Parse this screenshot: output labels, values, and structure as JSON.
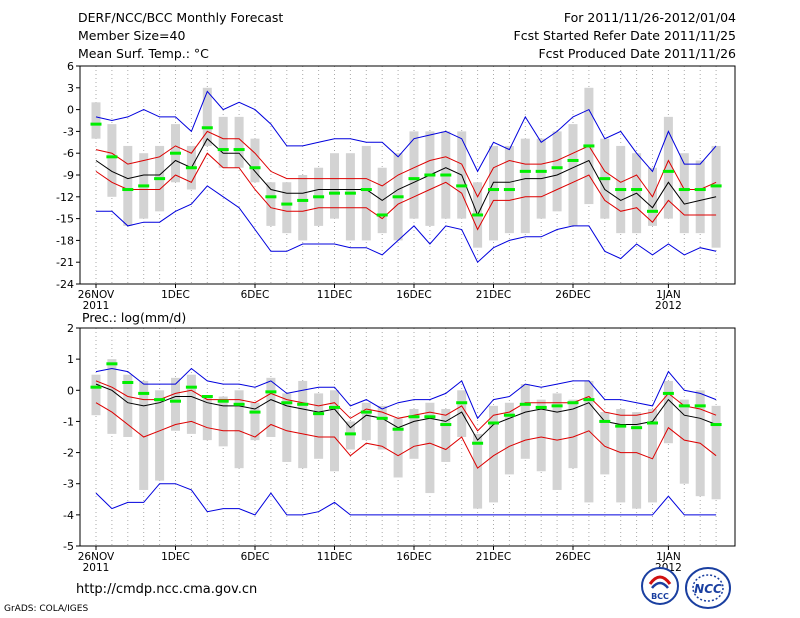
{
  "header": {
    "title": "DERF/NCC/BCC Monthly Forecast",
    "member_size": "Member Size=40",
    "variable": "Mean Surf. Temp.: °C",
    "period": "For 2011/11/26-2012/01/04",
    "started": "Fcst Started Refer Date 2011/11/25",
    "produced": "Fcst Produced Date 2011/11/26"
  },
  "footer": {
    "url": "http://cmdp.ncc.cma.gov.cn",
    "credit": "GrADS: COLA/IGES",
    "logo_bcc": "BCC",
    "logo_ncc": "NCC"
  },
  "colors": {
    "box": "#d3d3d3",
    "median": "#00ee00",
    "mean": "#000000",
    "band": "#dd0000",
    "envelope": "#0000dd",
    "grid": "#aaaaaa"
  },
  "chart_data": [
    {
      "type": "line",
      "title": "Mean Surf. Temp.: °C",
      "ylabel": "°C",
      "ylim": [
        -24,
        6
      ],
      "yticks": [
        -24,
        -21,
        -18,
        -15,
        -12,
        -9,
        -6,
        -3,
        0,
        3,
        6
      ],
      "ytick_labels": [
        "-24",
        "-21",
        "-18",
        "-15",
        "-12",
        "-9",
        "-6",
        "-3",
        "0",
        "3",
        "6"
      ],
      "x_dates": [
        "26NOV",
        "27NOV",
        "28NOV",
        "29NOV",
        "30NOV",
        "1DEC",
        "2DEC",
        "3DEC",
        "4DEC",
        "5DEC",
        "6DEC",
        "7DEC",
        "8DEC",
        "9DEC",
        "10DEC",
        "11DEC",
        "12DEC",
        "13DEC",
        "14DEC",
        "15DEC",
        "16DEC",
        "17DEC",
        "18DEC",
        "19DEC",
        "20DEC",
        "21DEC",
        "22DEC",
        "23DEC",
        "24DEC",
        "25DEC",
        "26DEC",
        "27DEC",
        "28DEC",
        "29DEC",
        "30DEC",
        "31DEC",
        "1JAN",
        "2JAN",
        "3JAN",
        "4JAN"
      ],
      "xticks": [
        {
          "index": 0,
          "label": "26NOV",
          "sub": "2011"
        },
        {
          "index": 5,
          "label": "1DEC",
          "sub": ""
        },
        {
          "index": 10,
          "label": "6DEC",
          "sub": ""
        },
        {
          "index": 15,
          "label": "11DEC",
          "sub": ""
        },
        {
          "index": 20,
          "label": "16DEC",
          "sub": ""
        },
        {
          "index": 25,
          "label": "21DEC",
          "sub": ""
        },
        {
          "index": 30,
          "label": "26DEC",
          "sub": ""
        },
        {
          "index": 36,
          "label": "1JAN",
          "sub": "2012"
        }
      ],
      "box_low": [
        -4,
        -12,
        -16,
        -15,
        -14,
        -10,
        -11,
        -5,
        -8,
        -8,
        -10,
        -16,
        -17,
        -18,
        -16,
        -15,
        -18,
        -18,
        -17,
        -18,
        -15,
        -16,
        -15,
        -15,
        -19,
        -18,
        -17,
        -17,
        -15,
        -14,
        -16,
        -13,
        -15,
        -17,
        -17,
        -16,
        -15,
        -17,
        -17,
        -19
      ],
      "box_high": [
        1,
        -2,
        -5,
        -6,
        -5,
        -2,
        -5,
        3,
        -1,
        -1,
        -4,
        -10,
        -10,
        -9,
        -8,
        -6,
        -6,
        -5,
        -8,
        -6,
        -3,
        -3,
        -3,
        -3,
        -10,
        -5,
        -5,
        -4,
        -4,
        -3,
        -2,
        3,
        -4,
        -5,
        -6,
        -8,
        -1,
        -6,
        -7,
        -5
      ],
      "median": [
        -2,
        -6.5,
        -11,
        -10.5,
        -9.5,
        -6,
        -8,
        -2.5,
        -5.5,
        -5.5,
        -8,
        -12,
        -13,
        -12.5,
        -12,
        -11.5,
        -11.5,
        -11,
        -14.5,
        -12,
        -9.5,
        -9,
        -9,
        -10.5,
        -14.5,
        -11,
        -11,
        -8.5,
        -8.5,
        -8,
        -7,
        -5,
        -9.5,
        -11,
        -11,
        -14,
        -8.5,
        -11,
        -11,
        -10.5
      ],
      "mean": [
        -7,
        -8.5,
        -9.5,
        -9,
        -9,
        -7,
        -8,
        -4,
        -6,
        -6,
        -8.5,
        -11,
        -11.5,
        -11.5,
        -11,
        -11,
        -11,
        -11,
        -12.5,
        -11,
        -10,
        -9,
        -8,
        -9,
        -14.5,
        -10,
        -10,
        -9.5,
        -9.5,
        -9,
        -8,
        -7,
        -11,
        -12.5,
        -11.5,
        -13.5,
        -10,
        -13,
        -12.5,
        -12
      ],
      "upper": [
        -5.5,
        -6,
        -7.5,
        -7,
        -6.5,
        -5,
        -6,
        -3,
        -4,
        -4,
        -6,
        -8.5,
        -9.5,
        -9.5,
        -9.5,
        -9.5,
        -9.5,
        -9.5,
        -10.5,
        -9,
        -8,
        -7,
        -6.5,
        -7.5,
        -12,
        -8,
        -7,
        -7.5,
        -7.5,
        -7,
        -6,
        -5,
        -8.5,
        -10,
        -9,
        -12,
        -7,
        -11,
        -11,
        -10
      ],
      "lower": [
        -8.5,
        -10,
        -11,
        -11,
        -11,
        -9,
        -10,
        -6,
        -8,
        -8,
        -11,
        -13.5,
        -14,
        -14,
        -13.5,
        -13.5,
        -13.5,
        -13.5,
        -15,
        -13,
        -12,
        -11,
        -10,
        -11.5,
        -16.5,
        -12.5,
        -12.5,
        -12,
        -12,
        -11,
        -10,
        -9,
        -12.5,
        -14,
        -13.5,
        -15.5,
        -12.5,
        -14.5,
        -14.5,
        -14.5
      ],
      "env_max": [
        -1,
        -1.5,
        -1,
        0,
        -1,
        -1,
        -3,
        2.5,
        0,
        1,
        0,
        -2,
        -5,
        -5,
        -4.5,
        -4,
        -4,
        -4.5,
        -4.5,
        -6.5,
        -4,
        -3.5,
        -3,
        -4,
        -8.5,
        -4.5,
        -5.5,
        -1,
        -4.5,
        -3,
        -1,
        0,
        -4,
        -3,
        -6,
        -8.5,
        -3,
        -7.5,
        -7.5,
        -5
      ],
      "env_min": [
        -14,
        -14,
        -16,
        -15.5,
        -15.5,
        -14,
        -13,
        -10.5,
        -12,
        -13.5,
        -16.5,
        -19.5,
        -19.5,
        -18.5,
        -18.5,
        -18.5,
        -19,
        -19,
        -20,
        -18,
        -16,
        -18.5,
        -16,
        -16.5,
        -21,
        -19,
        -18,
        -17.5,
        -17.5,
        -16.5,
        -16,
        -16,
        -19.5,
        -20.5,
        -18.5,
        -20,
        -18.5,
        -20,
        -19,
        -19.5
      ]
    },
    {
      "type": "line",
      "title": "Prec.: log(mm/d)",
      "ylabel": "log(mm/d)",
      "ylim": [
        -5,
        2
      ],
      "yticks": [
        -5,
        -4,
        -3,
        -2,
        -1,
        0,
        1,
        2
      ],
      "ytick_labels": [
        "-5",
        "-4",
        "-3",
        "-2",
        "-1",
        "0",
        "1",
        "2"
      ],
      "x_dates": [
        "26NOV",
        "27NOV",
        "28NOV",
        "29NOV",
        "30NOV",
        "1DEC",
        "2DEC",
        "3DEC",
        "4DEC",
        "5DEC",
        "6DEC",
        "7DEC",
        "8DEC",
        "9DEC",
        "10DEC",
        "11DEC",
        "12DEC",
        "13DEC",
        "14DEC",
        "15DEC",
        "16DEC",
        "17DEC",
        "18DEC",
        "19DEC",
        "20DEC",
        "21DEC",
        "22DEC",
        "23DEC",
        "24DEC",
        "25DEC",
        "26DEC",
        "27DEC",
        "28DEC",
        "29DEC",
        "30DEC",
        "31DEC",
        "1JAN",
        "2JAN",
        "3JAN",
        "4JAN"
      ],
      "xticks": [
        {
          "index": 0,
          "label": "26NOV",
          "sub": "2011"
        },
        {
          "index": 5,
          "label": "1DEC",
          "sub": ""
        },
        {
          "index": 10,
          "label": "6DEC",
          "sub": ""
        },
        {
          "index": 15,
          "label": "11DEC",
          "sub": ""
        },
        {
          "index": 20,
          "label": "16DEC",
          "sub": ""
        },
        {
          "index": 25,
          "label": "21DEC",
          "sub": ""
        },
        {
          "index": 30,
          "label": "26DEC",
          "sub": ""
        },
        {
          "index": 36,
          "label": "1JAN",
          "sub": "2012"
        }
      ],
      "box_low": [
        -0.8,
        -1.4,
        -1.5,
        -3.2,
        -2.9,
        -1.3,
        -1.4,
        -1.6,
        -1.8,
        -2.5,
        -1.6,
        -1.5,
        -2.3,
        -2.5,
        -2.2,
        -2.6,
        -1.9,
        -1.6,
        -1.9,
        -2.8,
        -2.2,
        -3.3,
        -2.3,
        -1.5,
        -3.8,
        -3.6,
        -2.7,
        -2.2,
        -2.6,
        -3.2,
        -2.5,
        -3.6,
        -2.7,
        -3.6,
        -3.8,
        -3.6,
        -1.7,
        -3.0,
        -3.4,
        -3.5
      ],
      "box_high": [
        0.5,
        1.0,
        0.5,
        0.3,
        0.0,
        0.4,
        0.5,
        -0.2,
        -0.2,
        0.0,
        -0.4,
        0.4,
        -0.1,
        0.3,
        -0.1,
        0.0,
        -1.0,
        -0.4,
        -0.5,
        -0.9,
        -0.6,
        -0.4,
        -0.6,
        0.0,
        -1.4,
        -0.5,
        -0.4,
        0.2,
        -0.3,
        -0.1,
        -0.3,
        0.3,
        -0.7,
        -0.6,
        -0.7,
        -0.6,
        0.3,
        -0.3,
        0.0,
        -0.5
      ],
      "median": [
        0.1,
        0.85,
        0.25,
        -0.1,
        -0.3,
        -0.35,
        0.1,
        -0.2,
        -0.35,
        -0.45,
        -0.7,
        -0.05,
        -0.4,
        -0.45,
        -0.75,
        -0.55,
        -1.4,
        -0.7,
        -0.9,
        -1.25,
        -0.85,
        -0.85,
        -1.1,
        -0.4,
        -1.7,
        -1.05,
        -0.8,
        -0.45,
        -0.55,
        -0.5,
        -0.4,
        -0.3,
        -1.0,
        -1.15,
        -1.2,
        -1.05,
        -0.1,
        -0.5,
        -0.5,
        -1.1
      ],
      "mean": [
        0.2,
        0.0,
        -0.4,
        -0.5,
        -0.4,
        -0.2,
        -0.2,
        -0.4,
        -0.5,
        -0.5,
        -0.6,
        -0.3,
        -0.5,
        -0.6,
        -0.7,
        -0.6,
        -1.2,
        -0.8,
        -0.9,
        -1.2,
        -1.0,
        -0.9,
        -1.0,
        -0.7,
        -1.6,
        -1.1,
        -0.9,
        -0.7,
        -0.6,
        -0.7,
        -0.6,
        -0.4,
        -1.0,
        -1.1,
        -1.1,
        -1.0,
        -0.3,
        -0.8,
        -0.9,
        -1.1
      ],
      "upper": [
        0.3,
        0.1,
        -0.2,
        -0.3,
        -0.3,
        -0.1,
        0.0,
        -0.3,
        -0.3,
        -0.3,
        -0.4,
        -0.1,
        -0.3,
        -0.4,
        -0.5,
        -0.4,
        -0.9,
        -0.6,
        -0.7,
        -0.9,
        -0.8,
        -0.7,
        -0.8,
        -0.5,
        -1.3,
        -0.8,
        -0.7,
        -0.4,
        -0.4,
        -0.4,
        -0.4,
        -0.2,
        -0.7,
        -0.8,
        -0.8,
        -0.7,
        -0.1,
        -0.5,
        -0.6,
        -0.8
      ],
      "lower": [
        -0.4,
        -0.7,
        -1.1,
        -1.5,
        -1.3,
        -1.1,
        -1.0,
        -1.2,
        -1.3,
        -1.3,
        -1.5,
        -1.1,
        -1.3,
        -1.4,
        -1.5,
        -1.5,
        -2.1,
        -1.7,
        -1.8,
        -2.1,
        -1.8,
        -1.7,
        -1.9,
        -1.5,
        -2.5,
        -2.1,
        -1.8,
        -1.6,
        -1.5,
        -1.6,
        -1.5,
        -1.3,
        -1.8,
        -2.0,
        -2.0,
        -2.2,
        -1.2,
        -1.6,
        -1.7,
        -2.1
      ],
      "env_max": [
        0.6,
        0.7,
        0.6,
        0.2,
        0.2,
        0.2,
        0.7,
        0.3,
        0.2,
        0.2,
        0.1,
        0.3,
        -0.1,
        0.0,
        0.1,
        0.1,
        -0.5,
        -0.3,
        -0.6,
        -0.4,
        -0.3,
        -0.3,
        -0.1,
        0.3,
        -0.9,
        -0.3,
        -0.2,
        0.2,
        0.1,
        0.2,
        0.3,
        0.3,
        -0.3,
        -0.3,
        -0.4,
        -0.5,
        0.6,
        0.0,
        -0.1,
        -0.3
      ],
      "env_min": [
        -3.3,
        -3.8,
        -3.6,
        -3.6,
        -3.0,
        -3.0,
        -3.2,
        -3.9,
        -3.8,
        -3.8,
        -4.0,
        -3.3,
        -4.0,
        -4.0,
        -3.9,
        -3.6,
        -4.0,
        -4.0,
        -4.0,
        -4.0,
        -4.0,
        -4.0,
        -4.0,
        -4.0,
        -4.0,
        -4.0,
        -4.0,
        -4.0,
        -4.0,
        -4.0,
        -4.0,
        -4.0,
        -4.0,
        -4.0,
        -4.0,
        -4.0,
        -3.4,
        -4.0,
        -4.0,
        -4.0
      ]
    }
  ]
}
